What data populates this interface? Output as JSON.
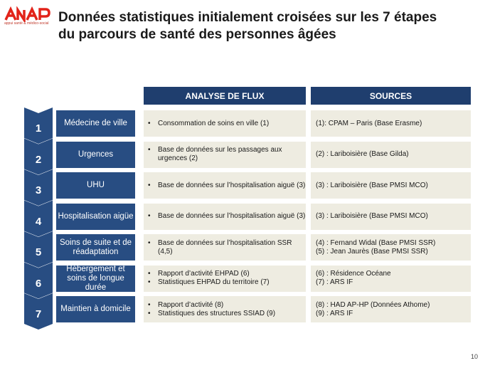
{
  "logo": {
    "name": "ANAP",
    "tagline": "appui santé & médico-social"
  },
  "title": {
    "line1": "Données statistiques  initialement  croisées sur les  7 étapes",
    "line2": "du parcours  de santé des personnes âgées"
  },
  "headers": {
    "flux": "ANALYSE DE FLUX",
    "sources": "SOURCES"
  },
  "colors": {
    "header": "#1f3e6e",
    "step": "#284d82",
    "cell": "#eeece1",
    "chevron": "#284d82",
    "logo": "#e2231a"
  },
  "steps": [
    {
      "num": "1",
      "name": "Médecine de ville",
      "flux": [
        "Consommation de soins en ville  (1)"
      ],
      "sources": [
        "(1): CPAM – Paris (Base Erasme)"
      ]
    },
    {
      "num": "2",
      "name": "Urgences",
      "flux": [
        "Base de données sur les passages aux urgences (2)"
      ],
      "sources": [
        "(2) : Lariboisière  (Base Gilda)"
      ]
    },
    {
      "num": "3",
      "name": "UHU",
      "flux": [
        "Base de données sur l’hospitalisation  aiguë (3)"
      ],
      "sources": [
        "(3) : Lariboisière  (Base PMSI MCO)"
      ]
    },
    {
      "num": "4",
      "name": "Hospitalisation aigüe",
      "flux": [
        "Base de données sur l’hospitalisation  aiguë (3)"
      ],
      "sources": [
        "(3) : Lariboisière  (Base PMSI MCO)"
      ]
    },
    {
      "num": "5",
      "name": "Soins de suite et de réadaptation",
      "flux": [
        "Base de données sur l’hospitalisation  SSR (4,5)"
      ],
      "sources": [
        "(4) : Fernand Widal (Base PMSI SSR)",
        "(5) : Jean Jaurès (Base PMSI SSR)"
      ]
    },
    {
      "num": "6",
      "name": "Hébergement et soins de longue durée",
      "flux": [
        "Rapport  d’activité  EHPAD  (6)",
        "Statistiques EHPAD du territoire  (7)"
      ],
      "sources": [
        "(6) : Résidence Océane",
        "(7) : ARS IF"
      ]
    },
    {
      "num": "7",
      "name": "Maintien à domicile",
      "flux": [
        "Rapport  d’activité  (8)",
        "Statistiques  des structures SSIAD (9)"
      ],
      "sources": [
        "(8) : HAD AP-HP (Données Athome)",
        "(9) : ARS IF"
      ]
    }
  ],
  "page_number": "10"
}
